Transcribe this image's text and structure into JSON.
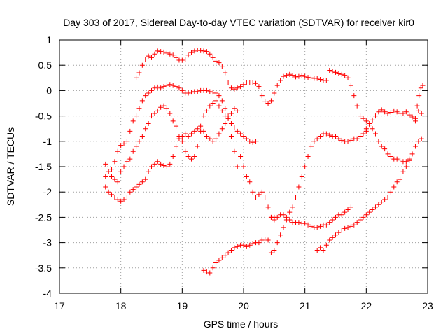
{
  "chart_data": {
    "type": "scatter",
    "title": "Day 303 of 2017, Sidereal Day-to-day VTEC variation (SDTVAR) for receiver kir0",
    "xlabel": "GPS time / hours",
    "ylabel": "SDTVAR / TECUs",
    "xlim": [
      17,
      23
    ],
    "ylim": [
      -4,
      1
    ],
    "xticks": [
      "17",
      "18",
      "19",
      "20",
      "21",
      "22",
      "23"
    ],
    "yticks": [
      "1",
      "0.5",
      "0",
      "-0.5",
      "-1",
      "-1.5",
      "-2",
      "-2.5",
      "-3",
      "-3.5",
      "-4"
    ],
    "grid": true,
    "marker": "+",
    "color": "#ff0000",
    "series": [
      {
        "x": [
          18.25,
          18.3,
          18.35,
          18.4,
          18.45,
          18.5,
          18.55,
          18.6,
          18.65,
          18.7,
          18.75,
          18.8,
          18.85,
          18.9,
          18.95,
          19.0,
          19.05,
          19.1,
          19.15,
          19.2,
          19.25,
          19.3,
          19.35,
          19.4,
          19.45,
          19.5,
          19.55,
          19.6,
          19.65,
          19.7,
          19.75,
          19.8,
          19.85,
          19.9,
          19.95,
          20.0,
          20.05,
          20.1,
          20.15,
          20.2,
          20.25,
          20.3,
          20.35,
          20.4,
          20.45,
          20.5,
          20.55,
          20.6,
          20.65,
          20.7,
          20.75,
          20.8,
          20.85,
          20.9,
          20.95,
          21.0,
          21.05,
          21.1,
          21.15,
          21.2,
          21.25,
          21.3,
          21.35
        ],
        "values": [
          0.25,
          0.35,
          0.5,
          0.62,
          0.68,
          0.65,
          0.72,
          0.78,
          0.77,
          0.76,
          0.74,
          0.72,
          0.7,
          0.65,
          0.6,
          0.6,
          0.62,
          0.7,
          0.75,
          0.78,
          0.8,
          0.79,
          0.78,
          0.77,
          0.72,
          0.65,
          0.58,
          0.55,
          0.48,
          0.35,
          0.15,
          0.05,
          0.03,
          0.05,
          0.08,
          0.12,
          0.15,
          0.15,
          0.15,
          0.14,
          0.08,
          -0.1,
          -0.22,
          -0.25,
          -0.2,
          -0.05,
          0.1,
          0.2,
          0.28,
          0.3,
          0.32,
          0.3,
          0.27,
          0.28,
          0.3,
          0.28,
          0.26,
          0.25,
          0.24,
          0.24,
          0.22,
          0.2,
          0.2
        ]
      },
      {
        "x": [
          21.4,
          21.45,
          21.5,
          21.55,
          21.6,
          21.65,
          21.7,
          21.75,
          21.8,
          21.85,
          21.9,
          21.95,
          22.0,
          22.05,
          22.1,
          22.15,
          22.2,
          22.25,
          22.3,
          22.35,
          22.4,
          22.45,
          22.5,
          22.55,
          22.6,
          22.65,
          22.7
        ],
        "values": [
          0.4,
          0.38,
          0.36,
          0.33,
          0.32,
          0.3,
          0.25,
          0.1,
          -0.1,
          -0.3,
          -0.5,
          -0.55,
          -0.6,
          -0.68,
          -0.75,
          -0.85,
          -1.0,
          -1.1,
          -1.15,
          -1.25,
          -1.3,
          -1.35,
          -1.35,
          -1.37,
          -1.4,
          -1.4,
          -1.38
        ]
      },
      {
        "x": [
          17.75,
          17.8,
          17.85,
          17.9,
          17.95,
          18.0,
          18.05,
          18.1,
          18.15,
          18.2,
          18.25,
          18.3,
          18.35,
          18.4,
          18.45,
          18.5,
          18.55,
          18.6,
          18.65,
          18.7,
          18.75,
          18.8,
          18.85,
          18.9,
          18.95,
          19.0,
          19.05,
          19.1,
          19.15,
          19.2,
          19.25,
          19.3,
          19.35,
          19.4,
          19.45,
          19.5,
          19.55,
          19.6,
          19.65,
          19.7,
          19.75,
          19.8,
          19.85,
          19.9,
          19.95,
          20.0,
          20.05,
          20.1,
          20.15,
          20.2
        ],
        "values": [
          -1.7,
          -1.6,
          -1.55,
          -1.4,
          -1.2,
          -1.08,
          -1.05,
          -1.0,
          -0.8,
          -0.6,
          -0.5,
          -0.35,
          -0.2,
          -0.1,
          -0.05,
          0.0,
          0.05,
          0.07,
          0.05,
          0.08,
          0.1,
          0.12,
          0.1,
          0.08,
          0.05,
          0.0,
          -0.05,
          -0.05,
          -0.03,
          -0.02,
          -0.02,
          0.0,
          0.0,
          0.0,
          -0.02,
          -0.03,
          -0.05,
          -0.1,
          -0.2,
          -0.35,
          -0.5,
          -0.65,
          -0.72,
          -0.8,
          -0.85,
          -0.9,
          -0.95,
          -1.0,
          -1.02,
          -1.0
        ]
      },
      {
        "x": [
          17.75,
          17.8,
          17.85,
          17.9,
          17.95,
          18.0,
          18.05,
          18.1,
          18.15,
          18.2,
          18.25,
          18.3,
          18.35,
          18.4,
          18.45,
          18.5,
          18.55,
          18.6,
          18.65,
          18.7,
          18.75,
          18.8,
          18.85,
          18.9,
          18.95,
          19.0,
          19.05,
          19.1,
          19.15,
          19.2,
          19.25,
          19.3,
          19.35,
          19.4,
          19.45,
          19.5,
          19.55,
          19.6,
          19.65,
          19.7,
          19.75,
          19.8,
          19.85,
          19.9
        ],
        "values": [
          -1.45,
          -1.6,
          -1.7,
          -1.75,
          -1.8,
          -1.6,
          -1.5,
          -1.4,
          -1.35,
          -1.2,
          -1.1,
          -1.0,
          -0.9,
          -0.75,
          -0.65,
          -0.5,
          -0.45,
          -0.4,
          -0.33,
          -0.3,
          -0.35,
          -0.45,
          -0.6,
          -0.7,
          -0.9,
          -1.0,
          -1.2,
          -1.3,
          -1.35,
          -1.3,
          -1.1,
          -0.8,
          -0.5,
          -0.4,
          -0.3,
          -0.25,
          -0.2,
          -0.3,
          -0.4,
          -0.5,
          -0.55,
          -0.9,
          -1.2,
          -1.5
        ]
      },
      {
        "x": [
          17.75,
          17.8,
          17.85,
          17.9,
          17.95,
          18.0,
          18.05,
          18.1,
          18.15,
          18.2,
          18.25,
          18.3,
          18.35,
          18.4,
          18.45,
          18.5,
          18.55,
          18.6,
          18.65,
          18.7,
          18.75,
          18.8,
          18.85,
          18.9,
          18.95,
          19.0,
          19.05,
          19.1,
          19.15,
          19.2,
          19.25,
          19.3,
          19.35,
          19.4,
          19.45,
          19.5,
          19.55,
          19.6,
          19.65,
          19.7,
          19.75,
          19.8,
          19.85,
          19.9
        ],
        "values": [
          -1.9,
          -2.0,
          -2.05,
          -2.1,
          -2.15,
          -2.18,
          -2.15,
          -2.1,
          -2.0,
          -1.95,
          -1.9,
          -1.85,
          -1.8,
          -1.75,
          -1.6,
          -1.5,
          -1.45,
          -1.4,
          -1.45,
          -1.48,
          -1.5,
          -1.45,
          -1.3,
          -1.1,
          -0.95,
          -0.9,
          -0.85,
          -0.9,
          -0.85,
          -0.8,
          -0.75,
          -0.7,
          -0.8,
          -0.9,
          -0.95,
          -1.0,
          -0.95,
          -0.85,
          -0.75,
          -0.65,
          -0.55,
          -0.45,
          -0.35,
          -0.4
        ]
      },
      {
        "x": [
          19.95,
          20.0,
          20.05,
          20.1,
          20.15,
          20.2,
          20.25,
          20.3,
          20.35,
          20.4,
          20.45,
          20.5
        ],
        "values": [
          -1.3,
          -1.5,
          -1.7,
          -1.8,
          -2.0,
          -2.1,
          -2.05,
          -2.0,
          -2.1,
          -2.3,
          -2.5,
          -2.5
        ]
      },
      {
        "x": [
          20.45,
          20.5,
          20.55,
          20.6,
          20.65,
          20.7,
          20.75,
          20.8,
          20.85,
          20.9,
          20.95,
          21.0,
          21.05,
          21.1,
          21.15,
          21.2,
          21.25,
          21.3,
          21.35,
          21.4,
          21.45,
          21.5,
          21.55,
          21.6,
          21.65,
          21.7,
          21.75
        ],
        "values": [
          -2.5,
          -2.55,
          -2.5,
          -2.45,
          -2.45,
          -2.5,
          -2.55,
          -2.6,
          -2.6,
          -2.6,
          -2.62,
          -2.62,
          -2.65,
          -2.68,
          -2.7,
          -2.7,
          -2.68,
          -2.65,
          -2.65,
          -2.6,
          -2.55,
          -2.5,
          -2.45,
          -2.45,
          -2.4,
          -2.35,
          -2.3
        ]
      },
      {
        "x": [
          20.45,
          20.5,
          20.55,
          20.6,
          20.65,
          20.7,
          20.75,
          20.8,
          20.85,
          20.9,
          20.95,
          21.0,
          21.05,
          21.1,
          21.15,
          21.2,
          21.25,
          21.3,
          21.35,
          21.4,
          21.45,
          21.5,
          21.55,
          21.6,
          21.65,
          21.7,
          21.75,
          21.8,
          21.85,
          21.9,
          21.95,
          22.0
        ],
        "values": [
          -3.2,
          -3.15,
          -3.0,
          -2.85,
          -2.7,
          -2.55,
          -2.4,
          -2.3,
          -2.1,
          -1.9,
          -1.7,
          -1.5,
          -1.3,
          -1.1,
          -1.0,
          -0.95,
          -0.9,
          -0.85,
          -0.85,
          -0.88,
          -0.9,
          -0.9,
          -0.95,
          -0.98,
          -1.0,
          -1.0,
          -0.98,
          -0.95,
          -0.95,
          -0.9,
          -0.85,
          -0.8
        ]
      },
      {
        "x": [
          22.0,
          22.05,
          22.1,
          22.15,
          22.2,
          22.25,
          22.3,
          22.35,
          22.4,
          22.45,
          22.5,
          22.55,
          22.6,
          22.65,
          22.7,
          22.75,
          22.8,
          22.85,
          22.9
        ],
        "values": [
          -0.75,
          -0.65,
          -0.58,
          -0.5,
          -0.42,
          -0.38,
          -0.42,
          -0.45,
          -0.43,
          -0.4,
          -0.42,
          -0.45,
          -0.45,
          -0.42,
          -0.48,
          -0.52,
          -0.55,
          -0.4,
          -0.45
        ]
      },
      {
        "x": [
          19.35,
          19.4,
          19.45,
          19.5,
          19.55,
          19.6,
          19.65,
          19.7,
          19.75,
          19.8,
          19.85,
          19.9,
          19.95,
          20.0,
          20.05,
          20.1,
          20.15,
          20.2,
          20.25,
          20.3,
          20.35,
          20.4
        ],
        "values": [
          -3.55,
          -3.58,
          -3.6,
          -3.5,
          -3.4,
          -3.35,
          -3.3,
          -3.25,
          -3.2,
          -3.15,
          -3.1,
          -3.08,
          -3.05,
          -3.05,
          -3.08,
          -3.05,
          -3.02,
          -3.0,
          -3.0,
          -2.95,
          -2.93,
          -2.95
        ]
      },
      {
        "x": [
          21.2,
          21.25,
          21.3,
          21.35,
          21.4,
          21.45,
          21.5,
          21.55,
          21.6,
          21.65,
          21.7,
          21.75,
          21.8,
          21.85,
          21.9,
          21.95,
          22.0,
          22.05,
          22.1,
          22.15,
          22.2,
          22.25,
          22.3,
          22.35,
          22.4,
          22.45,
          22.5,
          22.55,
          22.6,
          22.65,
          22.7,
          22.75,
          22.8,
          22.85,
          22.9
        ],
        "values": [
          -3.15,
          -3.1,
          -3.15,
          -3.05,
          -2.95,
          -2.9,
          -2.85,
          -2.8,
          -2.75,
          -2.72,
          -2.7,
          -2.68,
          -2.65,
          -2.6,
          -2.55,
          -2.5,
          -2.45,
          -2.4,
          -2.35,
          -2.3,
          -2.25,
          -2.2,
          -2.15,
          -2.1,
          -2.0,
          -1.9,
          -1.8,
          -1.75,
          -1.6,
          -1.5,
          -1.35,
          -1.25,
          -1.1,
          -1.0,
          -0.95
        ]
      },
      {
        "x": [
          22.8,
          22.83,
          22.86,
          22.89,
          22.92
        ],
        "values": [
          -0.6,
          -0.3,
          -0.1,
          0.05,
          0.1
        ]
      }
    ]
  }
}
